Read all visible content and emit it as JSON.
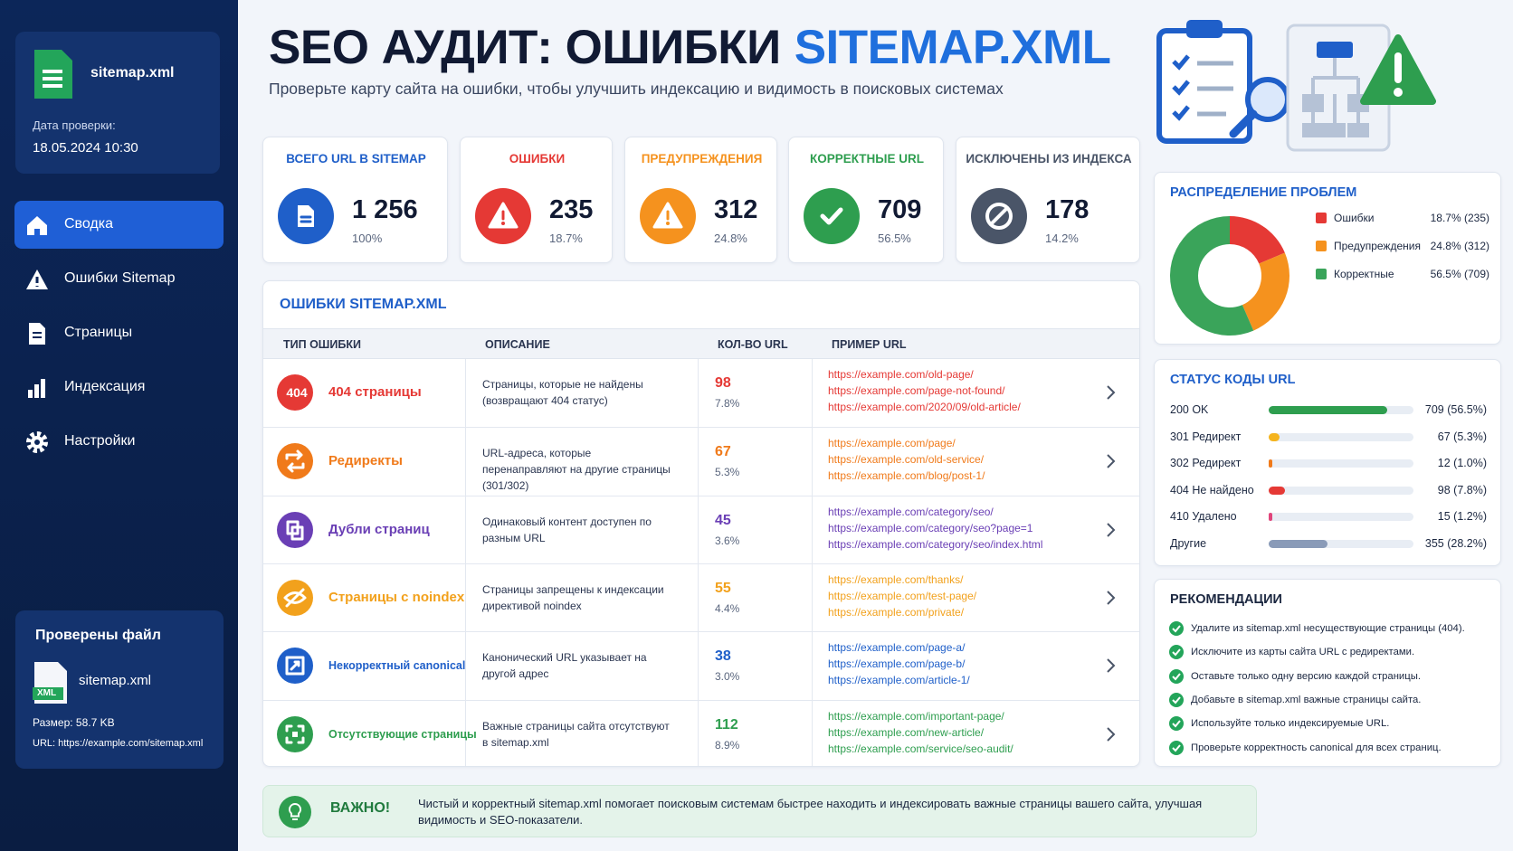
{
  "sidebar": {
    "file": {
      "name": "sitemap.xml",
      "checked_label": "Дата проверки:",
      "checked_date": "18.05.2024 10:30"
    },
    "nav": [
      "Сводка",
      "Ошибки Sitemap",
      "Страницы",
      "Индексация",
      "Настройки"
    ],
    "checked_file": {
      "title": "Проверены файл",
      "name": "sitemap.xml",
      "badge": "XML",
      "size": "Размер: 58.7 KB",
      "url": "URL: https://example.com/sitemap.xml"
    }
  },
  "header": {
    "title": "SEO АУДИТ: ОШИБКИ",
    "title_accent": "SITEMAP.XML",
    "subtitle": "Проверьте карту сайта на ошибки, чтобы улучшить индексацию и видимость в поисковых системах"
  },
  "cards": [
    {
      "label": "ВСЕГО URL В SITEMAP",
      "value": "1 256",
      "share": "100%",
      "color": "#1f5fc9"
    },
    {
      "label": "ОШИБКИ",
      "value": "235",
      "share": "18.7%",
      "color": "#e53935"
    },
    {
      "label": "ПРЕДУПРЕЖДЕНИЯ",
      "value": "312",
      "share": "24.8%",
      "color": "#f5921e"
    },
    {
      "label": "КОРРЕКТНЫЕ URL",
      "value": "709",
      "share": "56.5%",
      "color": "#2e9e4f"
    },
    {
      "label": "ИСКЛЮЧЕНЫ ИЗ ИНДЕКСА",
      "value": "178",
      "share": "14.2%",
      "color": "#4a5568"
    }
  ],
  "table": {
    "title": "ОШИБКИ SITEMAP.XML",
    "columns": [
      "ТИП ОШИБКИ",
      "ОПИСАНИЕ",
      "КОЛ-ВО URL",
      "ПРИМЕР URL"
    ],
    "rows": [
      {
        "icon": "404",
        "type": "404 страницы",
        "description": "Страницы, которые не найдены (возвращают 404 статус)",
        "count": "98",
        "share": "7.8%",
        "urls": [
          "https://example.com/old-page/",
          "https://example.com/page-not-found/",
          "https://example.com/2020/09/old-article/"
        ],
        "color": "#e53935"
      },
      {
        "type": "Редиректы",
        "description": "URL-адреса, которые перенаправляют на другие страницы (301/302)",
        "count": "67",
        "share": "5.3%",
        "urls": [
          "https://example.com/page/",
          "https://example.com/old-service/",
          "https://example.com/blog/post-1/"
        ],
        "color": "#f07a1a"
      },
      {
        "type": "Дубли страниц",
        "description": "Одинаковый контент доступен по разным URL",
        "count": "45",
        "share": "3.6%",
        "urls": [
          "https://example.com/category/seo/",
          "https://example.com/category/seo?page=1",
          "https://example.com/category/seo/index.html"
        ],
        "color": "#6a3fb5"
      },
      {
        "type": "Страницы с noindex",
        "description": "Страницы запрещены к индексации директивой noindex",
        "count": "55",
        "share": "4.4%",
        "urls": [
          "https://example.com/thanks/",
          "https://example.com/test-page/",
          "https://example.com/private/"
        ],
        "color": "#f2a11c"
      },
      {
        "type": "Некорректный canonical",
        "description": "Канонический URL указывает на другой адрес",
        "count": "38",
        "share": "3.0%",
        "urls": [
          "https://example.com/page-a/",
          "https://example.com/page-b/",
          "https://example.com/article-1/"
        ],
        "color": "#1f5fc9"
      },
      {
        "type": "Отсутствующие страницы",
        "description": "Важные страницы сайта отсутствуют в sitemap.xml",
        "count": "112",
        "share": "8.9%",
        "urls": [
          "https://example.com/important-page/",
          "https://example.com/new-article/",
          "https://example.com/service/seo-audit/"
        ],
        "color": "#2e9e4f"
      }
    ]
  },
  "distribution": {
    "title": "РАСПРЕДЕЛЕНИЕ ПРОБЛЕМ",
    "items": [
      {
        "name": "Ошибки",
        "value": 18.7,
        "label": "18.7% (235)",
        "color": "#e53935"
      },
      {
        "name": "Предупреждения",
        "value": 24.8,
        "label": "24.8% (312)",
        "color": "#f5921e"
      },
      {
        "name": "Корректные",
        "value": 56.5,
        "label": "56.5% (709)",
        "color": "#3aa45a"
      }
    ]
  },
  "status_codes": {
    "title": "СТАТУС КОДЫ URL",
    "items": [
      {
        "name": "200 OK",
        "value": 56.5,
        "label": "709 (56.5%)",
        "color": "#2e9e4f"
      },
      {
        "name": "301 Редирект",
        "value": 5.3,
        "label": "67 (5.3%)",
        "color": "#f5b41e"
      },
      {
        "name": "302 Редирект",
        "value": 1.0,
        "label": "12 (1.0%)",
        "color": "#f07a1a"
      },
      {
        "name": "404 Не найдено",
        "value": 7.8,
        "label": "98 (7.8%)",
        "color": "#e53935"
      },
      {
        "name": "410 Удалено",
        "value": 1.2,
        "label": "15 (1.2%)",
        "color": "#e0457b"
      },
      {
        "name": "Другие",
        "value": 28.2,
        "label": "355 (28.2%)",
        "color": "#8a9bb8"
      }
    ]
  },
  "recommendations": {
    "title": "РЕКОМЕНДАЦИИ",
    "items": [
      "Удалите из sitemap.xml несуществующие страницы (404).",
      "Исключите из карты сайта URL с редиректами.",
      "Оставьте только одну версию каждой страницы.",
      "Добавьте в sitemap.xml важные страницы сайта.",
      "Используйте только индексируемые URL.",
      "Проверьте корректность canonical для всех страниц."
    ]
  },
  "notice": {
    "title": "ВАЖНО!",
    "text": "Чистый и корректный sitemap.xml помогает поисковым системам быстрее находить и индексировать важные страницы вашего сайта, улучшая видимость и SEO-показатели."
  }
}
